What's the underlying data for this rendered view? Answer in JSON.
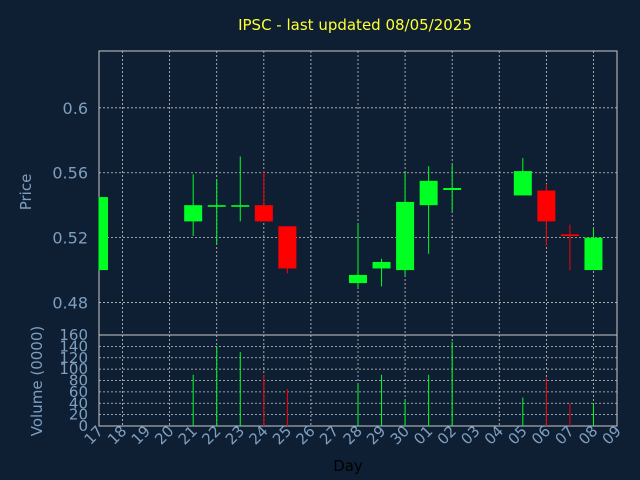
{
  "colors": {
    "background": "#0f1f33",
    "title": "#ffff33",
    "axis_text": "#7f9fbf",
    "grid": "#c8c8c8",
    "up": "#00ff22",
    "down": "#ff0000",
    "xlabel": "#000000"
  },
  "chart_data": {
    "type": "candlestick",
    "title": "IPSC - last updated 08/05/2025",
    "ylabel": "Price",
    "volume_label": "Volume (0000)",
    "xlabel": "Day",
    "price_ylim": [
      0.46,
      0.635
    ],
    "price_ticks": [
      "0.48",
      "0.52",
      "0.56",
      "0.6"
    ],
    "volume_ylim": [
      0,
      160
    ],
    "volume_ticks": [
      "0",
      "20",
      "40",
      "60",
      "80",
      "100",
      "120",
      "140",
      "160"
    ],
    "grid": true,
    "day_labels": [
      "17",
      "18",
      "19",
      "20",
      "21",
      "22",
      "23",
      "24",
      "25",
      "26",
      "27",
      "28",
      "29",
      "30",
      "01",
      "02",
      "03",
      "04",
      "05",
      "06",
      "07",
      "08",
      "09"
    ],
    "candles": [
      {
        "day": "17",
        "open": 0.5,
        "high": 0.545,
        "low": 0.5,
        "close": 0.545,
        "volume": 0
      },
      {
        "day": "21",
        "open": 0.53,
        "high": 0.559,
        "low": 0.521,
        "close": 0.54,
        "volume": 90
      },
      {
        "day": "22",
        "open": 0.539,
        "high": 0.556,
        "low": 0.516,
        "close": 0.54,
        "volume": 140
      },
      {
        "day": "23",
        "open": 0.539,
        "high": 0.57,
        "low": 0.53,
        "close": 0.54,
        "volume": 130
      },
      {
        "day": "24",
        "open": 0.54,
        "high": 0.561,
        "low": 0.53,
        "close": 0.53,
        "volume": 90
      },
      {
        "day": "25",
        "open": 0.527,
        "high": 0.527,
        "low": 0.498,
        "close": 0.501,
        "volume": 65
      },
      {
        "day": "28",
        "open": 0.492,
        "high": 0.529,
        "low": 0.489,
        "close": 0.497,
        "volume": 75
      },
      {
        "day": "29",
        "open": 0.501,
        "high": 0.507,
        "low": 0.49,
        "close": 0.505,
        "volume": 90
      },
      {
        "day": "30",
        "open": 0.5,
        "high": 0.56,
        "low": 0.497,
        "close": 0.542,
        "volume": 45
      },
      {
        "day": "01",
        "open": 0.54,
        "high": 0.564,
        "low": 0.51,
        "close": 0.555,
        "volume": 90
      },
      {
        "day": "02",
        "open": 0.55,
        "high": 0.565,
        "low": 0.536,
        "close": 0.55,
        "volume": 148
      },
      {
        "day": "05",
        "open": 0.546,
        "high": 0.569,
        "low": 0.546,
        "close": 0.561,
        "volume": 50
      },
      {
        "day": "06",
        "open": 0.549,
        "high": 0.553,
        "low": 0.515,
        "close": 0.53,
        "volume": 85
      },
      {
        "day": "07",
        "open": 0.522,
        "high": 0.528,
        "low": 0.5,
        "close": 0.521,
        "volume": 40
      },
      {
        "day": "08",
        "open": 0.5,
        "high": 0.526,
        "low": 0.5,
        "close": 0.52,
        "volume": 40
      }
    ]
  }
}
